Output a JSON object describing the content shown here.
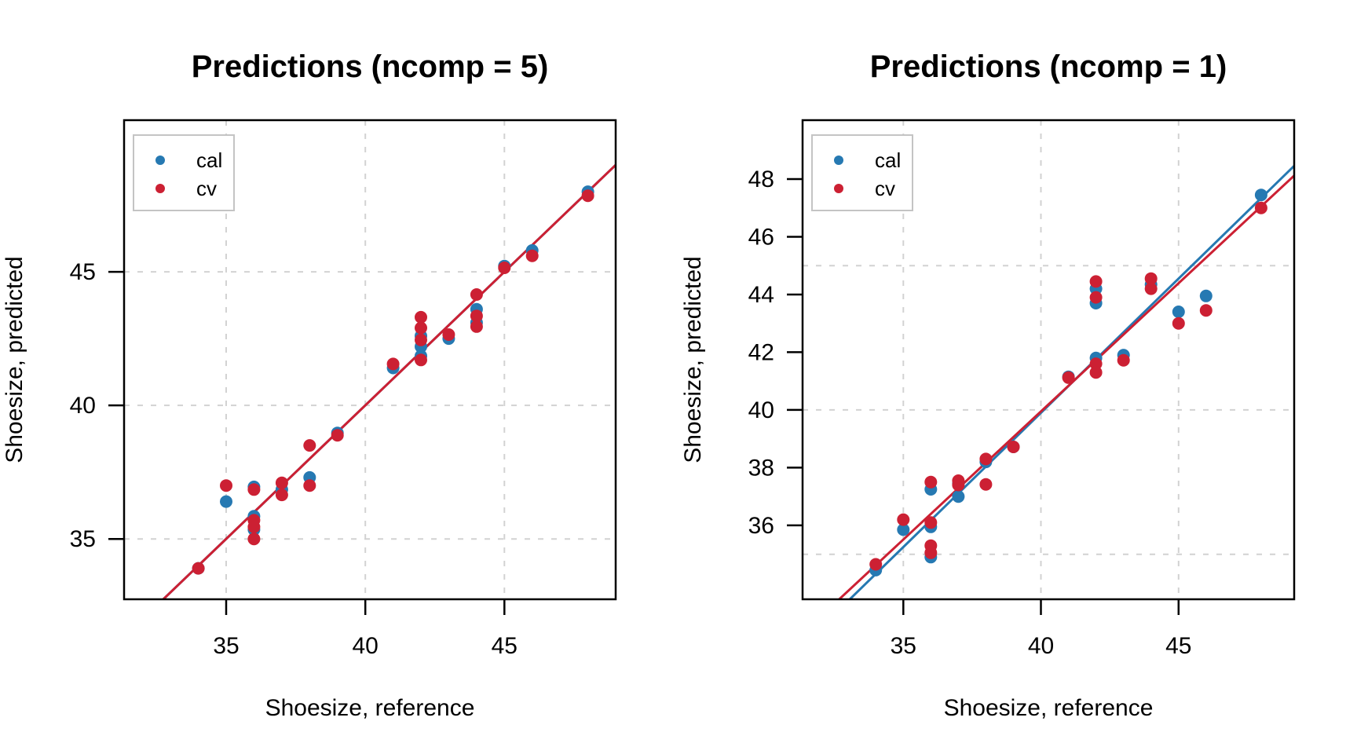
{
  "page": {
    "background": "#ffffff"
  },
  "colors": {
    "cal": "#2679B2",
    "cv": "#CC2033",
    "grid": "#d2d2d2",
    "axis": "#000000",
    "legend_border": "#c4c4c4"
  },
  "chart_data": [
    {
      "type": "scatter",
      "title": "Predictions (ncomp = 5)",
      "xlabel": "Shoesize, reference",
      "ylabel": "Shoesize, predicted",
      "xlim": [
        31.33,
        49.0
      ],
      "ylim": [
        32.74,
        50.68
      ],
      "x_ticks": [
        35,
        40,
        45
      ],
      "y_ticks": [
        35,
        40,
        45
      ],
      "grid_x": [
        35,
        40,
        45
      ],
      "grid_y": [
        35,
        40,
        45
      ],
      "grid": true,
      "legend_position": "topleft",
      "series": [
        {
          "name": "cal",
          "color": "cal",
          "marker": "circle",
          "points": [
            [
              34,
              33.9
            ],
            [
              35,
              36.4
            ],
            [
              36,
              36.95
            ],
            [
              36,
              35.85
            ],
            [
              36,
              35.35
            ],
            [
              37,
              36.85
            ],
            [
              38,
              37.3
            ],
            [
              39,
              38.97
            ],
            [
              41,
              41.4
            ],
            [
              42,
              42.6
            ],
            [
              42,
              42.2
            ],
            [
              42,
              41.85
            ],
            [
              43,
              42.5
            ],
            [
              44,
              43.6
            ],
            [
              44,
              43.1
            ],
            [
              45,
              45.22
            ],
            [
              46,
              45.8
            ],
            [
              48,
              48.0
            ]
          ]
        },
        {
          "name": "cv",
          "color": "cv",
          "marker": "circle",
          "points": [
            [
              34,
              33.9
            ],
            [
              35,
              37.0
            ],
            [
              36,
              36.85
            ],
            [
              36,
              35.7
            ],
            [
              36,
              35.45
            ],
            [
              36,
              35.0
            ],
            [
              37,
              37.1
            ],
            [
              37,
              36.65
            ],
            [
              38,
              38.5
            ],
            [
              38,
              37.0
            ],
            [
              39,
              38.88
            ],
            [
              41,
              41.55
            ],
            [
              42,
              43.3
            ],
            [
              42,
              42.9
            ],
            [
              42,
              42.45
            ],
            [
              42,
              41.7
            ],
            [
              43,
              42.65
            ],
            [
              44,
              44.15
            ],
            [
              44,
              43.35
            ],
            [
              44,
              42.95
            ],
            [
              45,
              45.15
            ],
            [
              46,
              45.6
            ],
            [
              48,
              47.85
            ]
          ]
        }
      ],
      "fit_lines": [
        {
          "name": "cal",
          "color": "cal",
          "slope": 1.0,
          "intercept": 0.0
        },
        {
          "name": "cv",
          "color": "cv",
          "slope": 1.0,
          "intercept": 0.0
        }
      ]
    },
    {
      "type": "scatter",
      "title": "Predictions (ncomp = 1)",
      "xlabel": "Shoesize, reference",
      "ylabel": "Shoesize, predicted",
      "xlim": [
        31.34,
        49.2
      ],
      "ylim": [
        33.44,
        50.04
      ],
      "x_ticks": [
        35,
        40,
        45
      ],
      "y_ticks": [
        36,
        38,
        40,
        42,
        44,
        46,
        48
      ],
      "grid_x": [
        35,
        40,
        45
      ],
      "grid_y": [
        35,
        40,
        45
      ],
      "grid": true,
      "legend_position": "topleft",
      "series": [
        {
          "name": "cal",
          "color": "cal",
          "marker": "circle",
          "points": [
            [
              34,
              34.45
            ],
            [
              35,
              35.85
            ],
            [
              36,
              37.25
            ],
            [
              36,
              35.95
            ],
            [
              36,
              34.9
            ],
            [
              37,
              37.45
            ],
            [
              37,
              37.0
            ],
            [
              38,
              38.2
            ],
            [
              39,
              38.72
            ],
            [
              41,
              41.15
            ],
            [
              42,
              44.2
            ],
            [
              42,
              43.7
            ],
            [
              42,
              41.8
            ],
            [
              43,
              41.9
            ],
            [
              44,
              44.35
            ],
            [
              45,
              43.4
            ],
            [
              46,
              43.95
            ],
            [
              48,
              47.45
            ]
          ]
        },
        {
          "name": "cv",
          "color": "cv",
          "marker": "circle",
          "points": [
            [
              34,
              34.65
            ],
            [
              35,
              36.2
            ],
            [
              36,
              37.5
            ],
            [
              36,
              36.1
            ],
            [
              36,
              35.3
            ],
            [
              36,
              35.05
            ],
            [
              37,
              37.55
            ],
            [
              37,
              37.4
            ],
            [
              38,
              38.3
            ],
            [
              38,
              37.42
            ],
            [
              39,
              38.72
            ],
            [
              41,
              41.12
            ],
            [
              42,
              44.45
            ],
            [
              42,
              43.9
            ],
            [
              42,
              41.6
            ],
            [
              42,
              41.3
            ],
            [
              43,
              41.72
            ],
            [
              44,
              44.55
            ],
            [
              44,
              44.2
            ],
            [
              45,
              43.0
            ],
            [
              46,
              43.45
            ],
            [
              48,
              47.0
            ]
          ]
        }
      ],
      "fit_lines": [
        {
          "name": "cal",
          "color": "cal",
          "slope": 0.93,
          "intercept": 2.7
        },
        {
          "name": "cv",
          "color": "cv",
          "slope": 0.888,
          "intercept": 4.43
        }
      ]
    }
  ]
}
